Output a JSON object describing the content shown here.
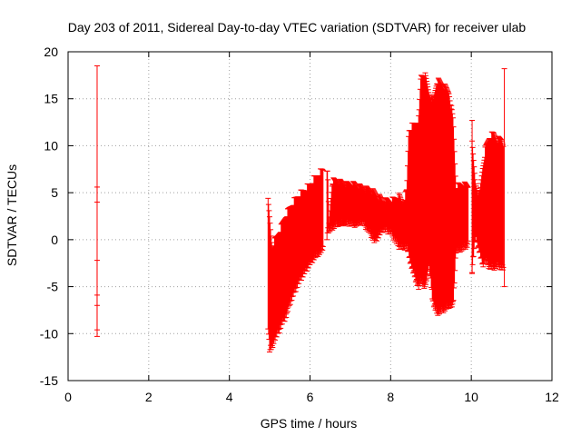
{
  "chart_data": {
    "type": "errorbar",
    "title": "Day 203 of 2011, Sidereal Day-to-day VTEC variation (SDTVAR) for receiver ulab",
    "xlabel": "GPS time / hours",
    "ylabel": "SDTVAR / TECUs",
    "xlim": [
      0,
      12
    ],
    "ylim": [
      -15,
      20
    ],
    "xticks": [
      0,
      2,
      4,
      6,
      8,
      10,
      12
    ],
    "yticks": [
      -15,
      -10,
      -5,
      0,
      5,
      10,
      15,
      20
    ],
    "grid": true,
    "legend": "none",
    "series_color": "#ff0000",
    "error_bars": [
      [
        0.72,
        -10.3,
        18.5
      ],
      [
        0.72,
        4.0,
        5.6
      ],
      [
        0.72,
        -9.6,
        -2.2
      ],
      [
        0.72,
        -7.0,
        -5.9
      ]
    ],
    "envelope": [
      [
        4.96,
        -9.5,
        4.4
      ],
      [
        5.0,
        -12.2,
        2.5
      ],
      [
        5.03,
        -11.8,
        1.0
      ],
      [
        5.06,
        -12.0,
        -0.5
      ],
      [
        5.1,
        -11.0,
        0.0
      ],
      [
        5.2,
        -10.3,
        0.8
      ],
      [
        5.3,
        -9.2,
        1.8
      ],
      [
        5.4,
        -8.5,
        2.9
      ],
      [
        5.5,
        -7.0,
        3.7
      ],
      [
        5.6,
        -6.0,
        4.4
      ],
      [
        5.7,
        -5.0,
        5.0
      ],
      [
        5.8,
        -4.2,
        5.4
      ],
      [
        5.9,
        -3.5,
        5.8
      ],
      [
        6.0,
        -2.8,
        6.2
      ],
      [
        6.1,
        -2.2,
        6.8
      ],
      [
        6.2,
        -1.8,
        7.3
      ],
      [
        6.3,
        -1.4,
        7.7
      ],
      [
        6.33,
        -1.2,
        7.7
      ]
    ],
    "envelope_2": [
      [
        6.42,
        0.0,
        7.3
      ],
      [
        6.44,
        0.7,
        7.4
      ],
      [
        6.47,
        0.6,
        2.0
      ],
      [
        6.55,
        1.0,
        6.6
      ],
      [
        6.7,
        1.4,
        6.5
      ],
      [
        6.9,
        1.5,
        6.2
      ],
      [
        7.1,
        1.3,
        6.2
      ],
      [
        7.3,
        1.6,
        5.8
      ],
      [
        7.5,
        0.4,
        5.6
      ],
      [
        7.6,
        -0.5,
        5.3
      ],
      [
        7.8,
        0.8,
        4.5
      ],
      [
        8.0,
        0.5,
        4.4
      ],
      [
        8.2,
        -1.0,
        5.0
      ],
      [
        8.3,
        -1.2,
        4.2
      ],
      [
        8.4,
        -1.0,
        5.5
      ],
      [
        8.45,
        -2.0,
        12.0
      ],
      [
        8.55,
        -3.6,
        12.5
      ],
      [
        8.7,
        -5.5,
        13.2
      ],
      [
        8.75,
        -4.5,
        17.8
      ],
      [
        8.85,
        -5.5,
        17.9
      ],
      [
        8.95,
        -3.0,
        16.0
      ],
      [
        9.05,
        -7.0,
        15.0
      ],
      [
        9.15,
        -8.1,
        17.3
      ],
      [
        9.3,
        -7.8,
        16.8
      ],
      [
        9.45,
        -7.3,
        16.0
      ],
      [
        9.55,
        -7.3,
        13.0
      ],
      [
        9.62,
        -1.5,
        6.0
      ],
      [
        9.8,
        -1.2,
        6.2
      ],
      [
        9.92,
        -0.8,
        6.0
      ]
    ],
    "envelope_3": [
      [
        10.02,
        -3.5,
        10.5
      ],
      [
        10.1,
        0.0,
        6.5
      ],
      [
        10.2,
        -1.5,
        5.0
      ],
      [
        10.28,
        -3.0,
        8.0
      ],
      [
        10.35,
        -2.5,
        10.0
      ],
      [
        10.45,
        -3.2,
        11.3
      ],
      [
        10.55,
        -3.3,
        11.6
      ],
      [
        10.65,
        -3.0,
        11.0
      ],
      [
        10.75,
        -3.3,
        11.0
      ],
      [
        10.8,
        -3.4,
        10.5
      ]
    ],
    "isolated_bars": [
      [
        10.02,
        -3.6,
        12.7
      ],
      [
        10.82,
        -5.0,
        18.2
      ]
    ]
  }
}
